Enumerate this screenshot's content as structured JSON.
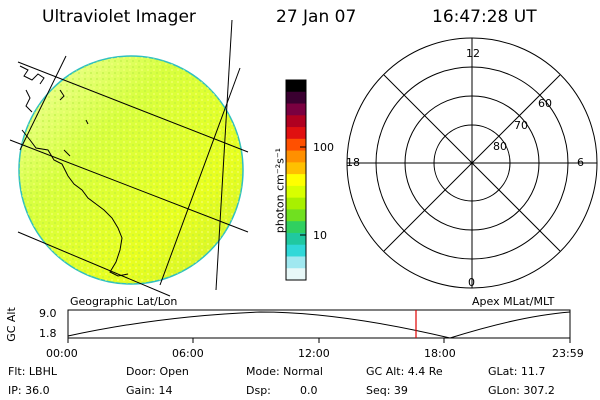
{
  "header": {
    "title": "Ultraviolet Imager",
    "date": "27 Jan 07",
    "time": "16:47:28 UT"
  },
  "colorbar": {
    "unit_label": "photon cm⁻²s⁻¹",
    "ticks": [
      "100",
      "10"
    ],
    "colors": [
      "#000000",
      "#3a0030",
      "#7a0040",
      "#b00020",
      "#e01010",
      "#ff5000",
      "#ff9000",
      "#ffc000",
      "#ffff00",
      "#d8ff00",
      "#a8f000",
      "#70e020",
      "#30d060",
      "#20c8a0",
      "#30d8d8",
      "#a0e8f0",
      "#e8f8f8"
    ]
  },
  "polar": {
    "mlt_labels": [
      "12",
      "18",
      "6",
      "0"
    ],
    "lat_labels": [
      "60",
      "70",
      "80"
    ]
  },
  "altitude_plot": {
    "left_title": "Geographic Lat/Lon",
    "right_title": "Apex MLat/MLT",
    "ylabel": "GC Alt",
    "y_ticks": [
      "9.0",
      "1.8"
    ],
    "x_ticks": [
      "00:00",
      "06:00",
      "12:00",
      "18:00",
      "23:59"
    ]
  },
  "info": {
    "filter": "Flt: LBHL",
    "ip": "IP: 36.0",
    "door": "Door: Open",
    "gain": "Gain: 14",
    "mode": "Mode: Normal",
    "dsp_label": "Dsp:",
    "dsp_value": "0.0",
    "gc_alt": "GC Alt: 4.4 Re",
    "seq": "Seq: 39",
    "glat": "GLat:  11.7",
    "glon": "GLon: 307.2"
  }
}
